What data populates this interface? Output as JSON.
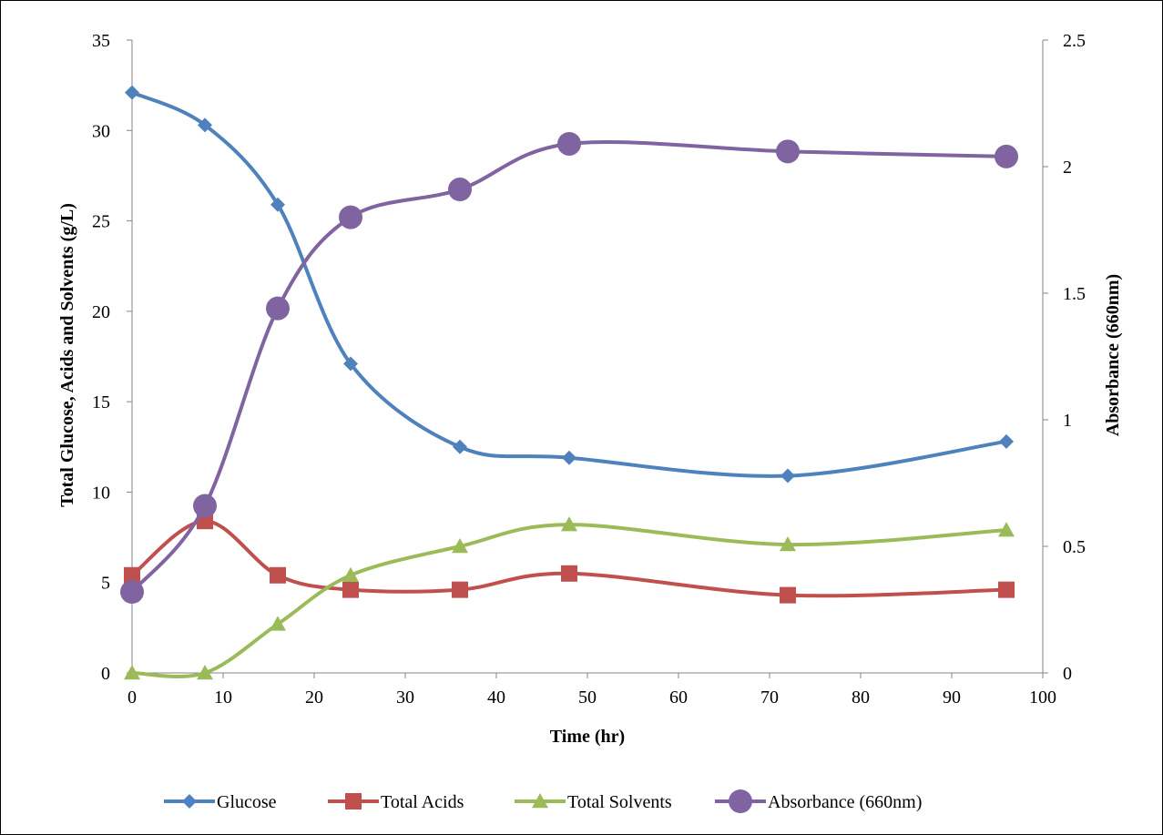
{
  "chart_data": {
    "type": "line",
    "title": "",
    "xlabel": "Time (hr)",
    "ylabel": "Total Glucose, Acids and Solvents (g/L)",
    "y2label": "Absorbance (660nm)",
    "xlim": [
      0,
      100
    ],
    "ylim": [
      0,
      35
    ],
    "y2lim": [
      0,
      2.5
    ],
    "x_ticks": [
      0,
      10,
      20,
      30,
      40,
      50,
      60,
      70,
      80,
      90,
      100
    ],
    "y_ticks": [
      0,
      5,
      10,
      15,
      20,
      25,
      30,
      35
    ],
    "y2_ticks": [
      "0",
      "0.5",
      "1",
      "1.5",
      "2",
      "2.5"
    ],
    "grid": false,
    "legend_position": "bottom",
    "series": [
      {
        "name": "Glucose",
        "axis": "left",
        "marker": "diamond",
        "color": "#4f81bd",
        "x": [
          0,
          8,
          16,
          24,
          36,
          48,
          72,
          96
        ],
        "values": [
          32.1,
          30.3,
          25.9,
          17.1,
          12.5,
          11.9,
          10.9,
          12.8
        ]
      },
      {
        "name": "Total Acids",
        "axis": "left",
        "marker": "square",
        "color": "#c0504d",
        "x": [
          0,
          8,
          16,
          24,
          36,
          48,
          72,
          96
        ],
        "values": [
          5.4,
          8.4,
          5.4,
          4.6,
          4.6,
          5.5,
          4.3,
          4.6
        ]
      },
      {
        "name": "Total Solvents",
        "axis": "left",
        "marker": "triangle",
        "color": "#9bbb59",
        "x": [
          0,
          8,
          16,
          24,
          36,
          48,
          72,
          96
        ],
        "values": [
          0.0,
          0.0,
          2.7,
          5.4,
          7.0,
          8.2,
          7.1,
          7.9
        ]
      },
      {
        "name": "Absorbance (660nm)",
        "axis": "right",
        "marker": "circle",
        "color": "#8064a2",
        "x": [
          0,
          8,
          16,
          24,
          36,
          48,
          72,
          96
        ],
        "values": [
          0.32,
          0.66,
          1.44,
          1.8,
          1.91,
          2.09,
          2.06,
          2.04
        ]
      }
    ]
  }
}
